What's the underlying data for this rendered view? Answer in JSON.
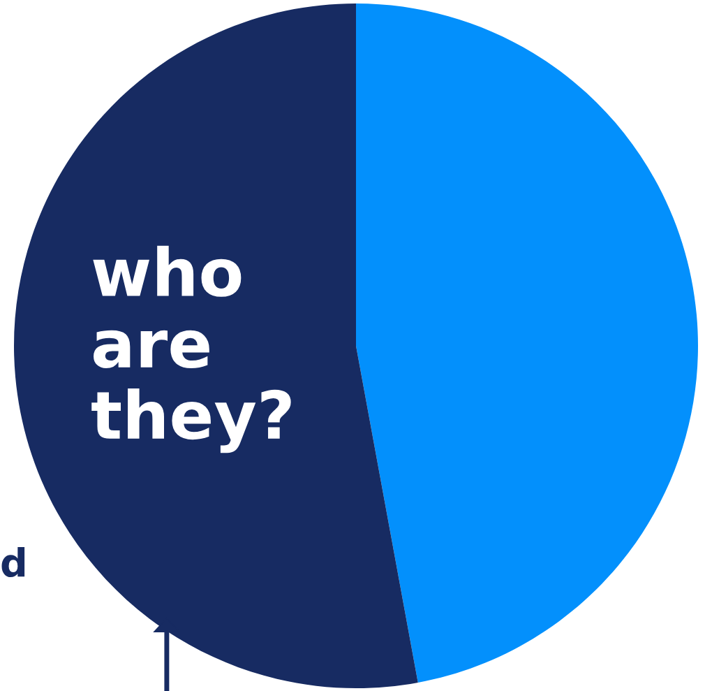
{
  "chart_data": {
    "type": "pie",
    "title": "who\nare\nthey?",
    "categories": [
      null,
      null
    ],
    "values": [
      47.1,
      52.9
    ],
    "colors": [
      "#0390fc",
      "#172b62"
    ],
    "annotations": [
      "d"
    ]
  }
}
